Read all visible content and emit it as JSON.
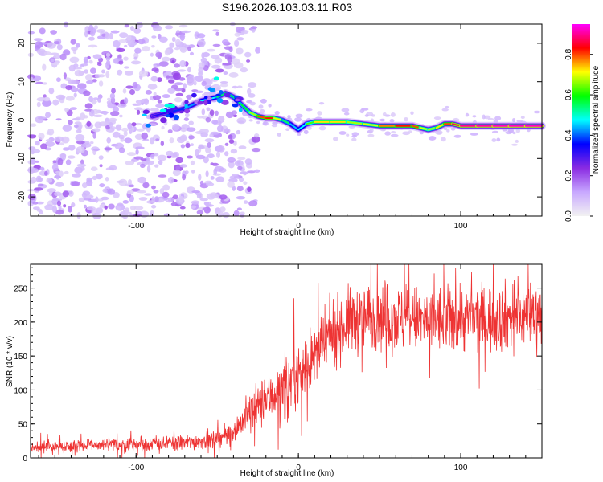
{
  "title": "S196.2026.103.03.11.R03",
  "chart_data": [
    {
      "type": "heatmap",
      "title": "S196.2026.103.03.11.R03",
      "xlabel": "Height of straight line (km)",
      "ylabel": "Frequency (Hz)",
      "xlim": [
        -165,
        150
      ],
      "ylim": [
        -25,
        25
      ],
      "xticks": [
        -100,
        0,
        100
      ],
      "yticks": [
        20,
        10,
        0,
        -10,
        -20
      ],
      "colorbar": {
        "label": "Normalized spectral amplitude",
        "range": [
          0,
          0.95
        ],
        "ticks": [
          0.0,
          0.2,
          0.4,
          0.6,
          0.8
        ],
        "colormap": [
          "#f2f2f2",
          "#c8a8ff",
          "#8a2be2",
          "#0000ff",
          "#00ffff",
          "#00ff00",
          "#ffff00",
          "#ff0000",
          "#ff00ff"
        ]
      },
      "ridge": {
        "x": [
          -90,
          -80,
          -70,
          -60,
          -50,
          -45,
          -40,
          -35,
          -30,
          -25,
          -20,
          -15,
          -10,
          -5,
          0,
          5,
          10,
          20,
          30,
          40,
          50,
          60,
          70,
          75,
          80,
          85,
          90,
          95,
          100,
          110,
          120,
          130,
          140,
          150
        ],
        "freq_hz": [
          1,
          2,
          3,
          5,
          6,
          7,
          6,
          4,
          2,
          1,
          0.5,
          0.5,
          0,
          -1,
          -2.5,
          -1,
          -0.5,
          -0.5,
          -0.5,
          -1,
          -1.5,
          -1.5,
          -1.5,
          -2,
          -2.5,
          -2,
          -1,
          -1,
          -1.5,
          -1.5,
          -1.5,
          -1.5,
          -1.5,
          -1.5
        ],
        "amplitude": [
          0.3,
          0.35,
          0.4,
          0.45,
          0.5,
          0.6,
          0.55,
          0.55,
          0.6,
          0.75,
          0.85,
          0.8,
          0.6,
          0.5,
          0.4,
          0.55,
          0.7,
          0.75,
          0.7,
          0.65,
          0.75,
          0.8,
          0.85,
          0.75,
          0.65,
          0.7,
          0.75,
          0.85,
          0.9,
          0.9,
          0.92,
          0.92,
          0.92,
          0.92
        ]
      }
    },
    {
      "type": "line",
      "xlabel": "Height of straight line (km)",
      "ylabel": "SNR (10 * v/v)",
      "xlim": [
        -165,
        150
      ],
      "ylim": [
        0,
        285
      ],
      "xticks": [
        -100,
        0,
        100
      ],
      "yticks": [
        0,
        50,
        100,
        150,
        200,
        250
      ],
      "color": "#ee3333",
      "trend": {
        "x": [
          -165,
          -140,
          -100,
          -70,
          -50,
          -40,
          -30,
          -20,
          -10,
          0,
          10,
          20,
          30,
          50,
          80,
          100,
          120,
          150
        ],
        "y": [
          15,
          18,
          20,
          22,
          28,
          40,
          65,
          85,
          105,
          125,
          150,
          180,
          200,
          210,
          200,
          205,
          205,
          215
        ]
      },
      "noise_amplitude": {
        "x": [
          -165,
          -40,
          -30,
          20,
          30,
          150
        ],
        "y": [
          8,
          12,
          30,
          45,
          45,
          45
        ]
      }
    }
  ]
}
